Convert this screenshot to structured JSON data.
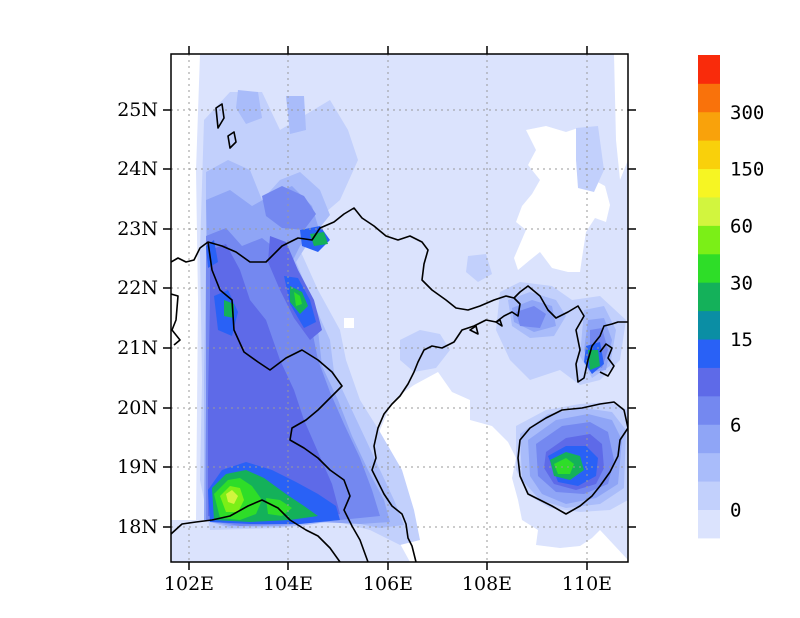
{
  "chart_data": {
    "type": "heatmap",
    "title": "",
    "xlabel": "",
    "ylabel": "",
    "x_ticks": [
      "102E",
      "104E",
      "106E",
      "108E",
      "110E"
    ],
    "y_ticks": [
      "18N",
      "19N",
      "20N",
      "21N",
      "22N",
      "23N",
      "24N",
      "25N"
    ],
    "xlim": [
      101.65,
      110.85
    ],
    "ylim": [
      17.4,
      25.9
    ],
    "grid": true,
    "colorbar": {
      "levels": [
        "0",
        "",
        "",
        "6",
        "",
        "",
        "15",
        "",
        "30",
        "",
        "60",
        "",
        "150",
        "",
        "300"
      ],
      "colors": [
        "#dbe3fd",
        "#c2d0fc",
        "#a9bcfa",
        "#8fa5f6",
        "#7488f0",
        "#5e6ae8",
        "#2961f6",
        "#0b8ea4",
        "#14b15a",
        "#2edd28",
        "#7bef17",
        "#d2f53e",
        "#f6f523",
        "#f9d00b",
        "#f9a20b",
        "#f9720b",
        "#f92b0b"
      ]
    }
  },
  "map": {
    "coastline_color": "#000000",
    "background": "#ffffff"
  }
}
